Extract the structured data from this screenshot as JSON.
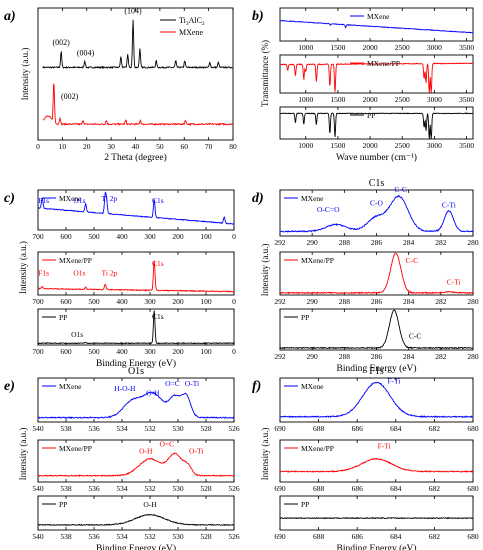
{
  "chart_data": [
    {
      "id": "a",
      "label": "a)",
      "type": "line",
      "xlabel": "2 Theta (degree)",
      "ylabel": "Intensity (a.u.)",
      "xlim": [
        0,
        80
      ],
      "xticks": [
        0,
        10,
        20,
        30,
        40,
        50,
        60,
        70,
        80
      ],
      "legend": {
        "position": "top-right",
        "entries": [
          "Ti3AlC2",
          "MXene"
        ]
      },
      "legend_display": [
        {
          "main": "Ti",
          "sub1": "3",
          "mid": "AlC",
          "sub2": "2"
        },
        {
          "main": "MXene"
        }
      ],
      "series": [
        {
          "name": "Ti3AlC2",
          "color": "#000000",
          "baseline": 0.55,
          "peaks": [
            [
              9.5,
              0.12
            ],
            [
              19.2,
              0.05
            ],
            [
              34.0,
              0.08
            ],
            [
              36.8,
              0.1
            ],
            [
              39.0,
              0.36
            ],
            [
              41.8,
              0.14
            ],
            [
              48.5,
              0.05
            ],
            [
              56.5,
              0.05
            ],
            [
              60.2,
              0.05
            ],
            [
              70.5,
              0.04
            ],
            [
              74.0,
              0.04
            ]
          ]
        },
        {
          "name": "MXene",
          "color": "#ff0000",
          "baseline": 0.12,
          "peaks": [
            [
              6.5,
              0.3
            ],
            [
              9.0,
              0.05
            ],
            [
              18.5,
              0.03
            ],
            [
              28.0,
              0.03
            ],
            [
              36.0,
              0.03
            ],
            [
              42.0,
              0.03
            ],
            [
              60.5,
              0.03
            ]
          ]
        }
      ],
      "annotations": [
        {
          "text": "(002)",
          "x": 9.5,
          "y": 0.72
        },
        {
          "text": "(004)",
          "x": 19.5,
          "y": 0.64
        },
        {
          "text": "(104)",
          "x": 39.0,
          "y": 0.96
        },
        {
          "text": "(002)",
          "x": 13.0,
          "y": 0.31
        }
      ]
    },
    {
      "id": "b",
      "label": "b)",
      "type": "line",
      "xlabel": "Wave number (cm⁻¹)",
      "ylabel": "Transmittance (%)",
      "xlim": [
        600,
        3600
      ],
      "xticks": [
        1000,
        1500,
        2000,
        2500,
        3000,
        3500
      ],
      "stack": [
        {
          "name": "MXene",
          "color": "#0000ff",
          "start": 0.62,
          "end": 0.25,
          "dips": [
            [
              1620,
              0.08
            ],
            [
              1380,
              0.05
            ]
          ]
        },
        {
          "name": "MXene/PP",
          "color": "#ff0000",
          "start": 0.75,
          "end": 0.78,
          "dips": [
            [
              720,
              0.15
            ],
            [
              840,
              0.3
            ],
            [
              970,
              0.4
            ],
            [
              1000,
              0.2
            ],
            [
              1165,
              0.45
            ],
            [
              1375,
              0.6
            ],
            [
              1455,
              0.75
            ],
            [
              2840,
              0.4
            ],
            [
              2870,
              0.5
            ],
            [
              2920,
              0.8
            ],
            [
              2950,
              0.85
            ]
          ]
        },
        {
          "name": "PP",
          "color": "#000000",
          "start": 0.8,
          "end": 0.8,
          "dips": [
            [
              840,
              0.3
            ],
            [
              970,
              0.35
            ],
            [
              1165,
              0.35
            ],
            [
              1375,
              0.65
            ],
            [
              1455,
              0.75
            ],
            [
              2840,
              0.45
            ],
            [
              2870,
              0.55
            ],
            [
              2920,
              0.8
            ],
            [
              2950,
              0.9
            ]
          ]
        }
      ]
    },
    {
      "id": "c",
      "label": "c)",
      "type": "line",
      "xlabel": "Binding Energy (eV)",
      "ylabel": "Intensity (a.u.)",
      "xlim": [
        700,
        0
      ],
      "reverse": true,
      "xticks": [
        700,
        600,
        500,
        400,
        300,
        200,
        100,
        0
      ],
      "stack": [
        {
          "name": "MXene",
          "color": "#0000ff",
          "start": 0.55,
          "end": 0.15,
          "peaks": [
            [
              685,
              0.25
            ],
            [
              530,
              0.2
            ],
            [
              460,
              0.45
            ],
            [
              455,
              0.3
            ],
            [
              285,
              0.45
            ],
            [
              35,
              0.15
            ]
          ],
          "labels": [
            {
              "text": "F1s",
              "x": 680,
              "y": 0.68
            },
            {
              "text": "O1s",
              "x": 552,
              "y": 0.68
            },
            {
              "text": "Ti 2p",
              "x": 445,
              "y": 0.72
            },
            {
              "text": "C1s",
              "x": 272,
              "y": 0.68
            }
          ]
        },
        {
          "name": "MXene/PP",
          "color": "#ff0000",
          "start": 0.15,
          "end": 0.08,
          "peaks": [
            [
              685,
              0.05
            ],
            [
              530,
              0.05
            ],
            [
              460,
              0.12
            ],
            [
              285,
              0.7
            ]
          ],
          "labels": [
            {
              "text": "F1s",
              "x": 680,
              "y": 0.45
            },
            {
              "text": "O1s",
              "x": 552,
              "y": 0.45
            },
            {
              "text": "Ti 2p",
              "x": 445,
              "y": 0.45
            },
            {
              "text": "C1s",
              "x": 272,
              "y": 0.68
            }
          ]
        },
        {
          "name": "PP",
          "color": "#000000",
          "start": 0.05,
          "end": 0.05,
          "peaks": [
            [
              532,
              0.02
            ],
            [
              285,
              0.9
            ]
          ],
          "labels": [
            {
              "text": "O1s",
              "x": 560,
              "y": 0.22
            },
            {
              "text": "C1s",
              "x": 272,
              "y": 0.72
            }
          ]
        }
      ]
    },
    {
      "id": "d",
      "label": "d)",
      "type": "line",
      "title": "C1s",
      "xlabel": "Binding Energy (eV)",
      "ylabel": "Intensity (a.u.)",
      "xlim": [
        292,
        280
      ],
      "reverse": true,
      "xticks": [
        292,
        290,
        288,
        286,
        284,
        282,
        280
      ],
      "stack": [
        {
          "name": "MXene",
          "color": "#0000ff",
          "base": 0.1,
          "peaks": [
            [
              288.5,
              0.15,
              0.9
            ],
            [
              286.0,
              0.3,
              0.8
            ],
            [
              284.6,
              0.75,
              0.8
            ],
            [
              281.5,
              0.45,
              0.4
            ]
          ],
          "labels": [
            {
              "text": "O-C=O",
              "x": 289.0,
              "y": 0.52
            },
            {
              "text": "C-O",
              "x": 286.0,
              "y": 0.66
            },
            {
              "text": "C-C",
              "x": 284.5,
              "y": 0.96
            },
            {
              "text": "C-Ti",
              "x": 281.5,
              "y": 0.62
            }
          ]
        },
        {
          "name": "MXene/PP",
          "color": "#ff0000",
          "base": 0.05,
          "peaks": [
            [
              284.8,
              0.92,
              0.45
            ],
            [
              281.5,
              0.03,
              0.4
            ]
          ],
          "labels": [
            {
              "text": "C-C",
              "x": 283.8,
              "y": 0.75
            },
            {
              "text": "C-Ti",
              "x": 281.2,
              "y": 0.25
            }
          ]
        },
        {
          "name": "PP",
          "color": "#000000",
          "base": 0.05,
          "peaks": [
            [
              284.9,
              0.92,
              0.42
            ]
          ],
          "labels": [
            {
              "text": "C-C",
              "x": 283.6,
              "y": 0.28
            }
          ]
        }
      ]
    },
    {
      "id": "e",
      "label": "e)",
      "type": "line",
      "title": "O1s",
      "xlabel": "Binding Energy (eV)",
      "ylabel": "Intensity (a.u.)",
      "xlim": [
        540,
        526
      ],
      "reverse": true,
      "xticks": [
        540,
        538,
        536,
        534,
        532,
        530,
        528,
        526
      ],
      "stack": [
        {
          "name": "MXene",
          "color": "#0000ff",
          "base": 0.1,
          "peaks": [
            [
              533.3,
              0.35,
              0.9
            ],
            [
              531.8,
              0.55,
              1.0
            ],
            [
              530.2,
              0.45,
              0.6
            ],
            [
              529.4,
              0.45,
              0.45
            ]
          ],
          "labels": [
            {
              "text": "H-O-H",
              "x": 533.8,
              "y": 0.7
            },
            {
              "text": "O-H",
              "x": 531.8,
              "y": 0.6
            },
            {
              "text": "O=C",
              "x": 530.4,
              "y": 0.82
            },
            {
              "text": "O-Ti",
              "x": 529.0,
              "y": 0.82
            }
          ]
        },
        {
          "name": "MXene/PP",
          "color": "#ff0000",
          "base": 0.15,
          "peaks": [
            [
              532.0,
              0.4,
              1.1
            ],
            [
              530.2,
              0.5,
              0.7
            ],
            [
              529.3,
              0.2,
              0.4
            ]
          ],
          "labels": [
            {
              "text": "O-H",
              "x": 532.3,
              "y": 0.68
            },
            {
              "text": "O=C",
              "x": 530.8,
              "y": 0.85
            },
            {
              "text": "O-Ti",
              "x": 528.7,
              "y": 0.68
            }
          ]
        },
        {
          "name": "PP",
          "color": "#000000",
          "base": 0.15,
          "peaks": [
            [
              532.0,
              0.3,
              1.5
            ]
          ],
          "labels": [
            {
              "text": "O-H",
              "x": 532.0,
              "y": 0.68
            }
          ]
        }
      ]
    },
    {
      "id": "f",
      "label": "f)",
      "type": "line",
      "title": "F1s",
      "xlabel": "Binding Energy (eV)",
      "ylabel": "Intensity (a.u.)",
      "xlim": [
        690,
        680
      ],
      "reverse": true,
      "xticks": [
        690,
        688,
        686,
        684,
        682,
        680
      ],
      "stack": [
        {
          "name": "MXene",
          "color": "#0000ff",
          "base": 0.12,
          "peaks": [
            [
              685.0,
              0.78,
              1.0
            ]
          ],
          "labels": [
            {
              "text": "F-Ti",
              "x": 684.1,
              "y": 0.88
            }
          ]
        },
        {
          "name": "MXene/PP",
          "color": "#ff0000",
          "base": 0.25,
          "peaks": [
            [
              685.0,
              0.3,
              1.1
            ]
          ],
          "labels": [
            {
              "text": "F-Ti",
              "x": 684.6,
              "y": 0.8
            }
          ]
        },
        {
          "name": "PP",
          "color": "#000000",
          "base": 0.35,
          "peaks": [],
          "labels": []
        }
      ]
    }
  ]
}
